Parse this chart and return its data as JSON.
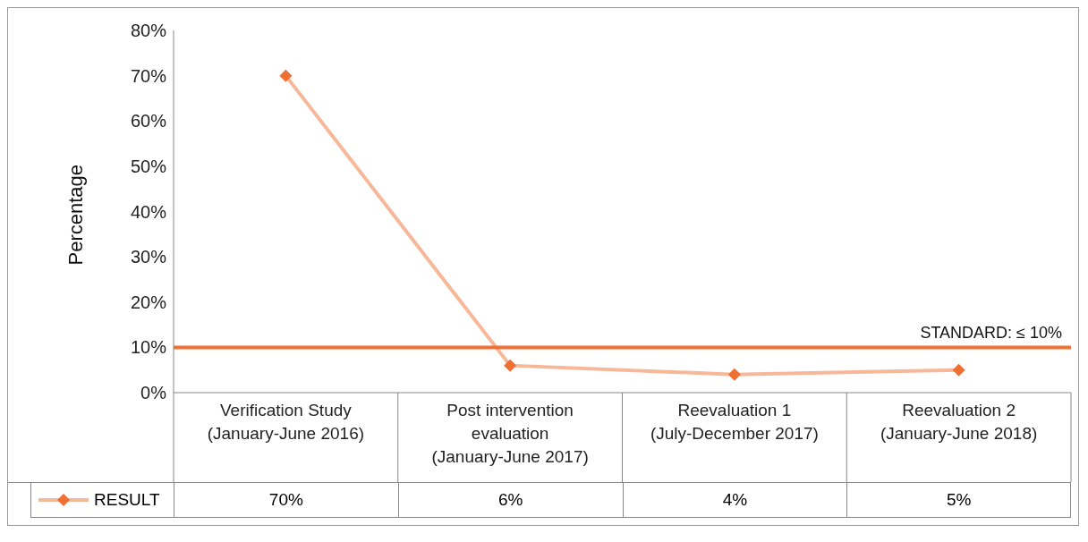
{
  "chart_data": {
    "type": "line",
    "ylabel": "Percentage",
    "categories": [
      "Verification Study (January-June 2016)",
      "Post intervention evaluation (January-June 2017)",
      "Reevaluation 1 (July-December 2017)",
      "Reevaluation 2 (January-June 2018)"
    ],
    "series": [
      {
        "name": "RESULT",
        "color": "#f07033",
        "values": [
          70,
          6,
          4,
          5
        ],
        "value_labels": [
          "70%",
          "6%",
          "4%",
          "5%"
        ]
      }
    ],
    "ylim": [
      0,
      80
    ],
    "yticks": [
      {
        "value": 0,
        "label": "0%"
      },
      {
        "value": 10,
        "label": "10%"
      },
      {
        "value": 20,
        "label": "20%"
      },
      {
        "value": 30,
        "label": "30%"
      },
      {
        "value": 40,
        "label": "40%"
      },
      {
        "value": 50,
        "label": "50%"
      },
      {
        "value": 60,
        "label": "60%"
      },
      {
        "value": 70,
        "label": "70%"
      },
      {
        "value": 80,
        "label": "80%"
      }
    ],
    "ref_lines": [
      {
        "axis": "y",
        "value": 10,
        "label": "STANDARD: ≤ 10%",
        "color": "#f07033"
      }
    ],
    "marker": "diamond",
    "grid": false,
    "legend": "bottom left"
  }
}
